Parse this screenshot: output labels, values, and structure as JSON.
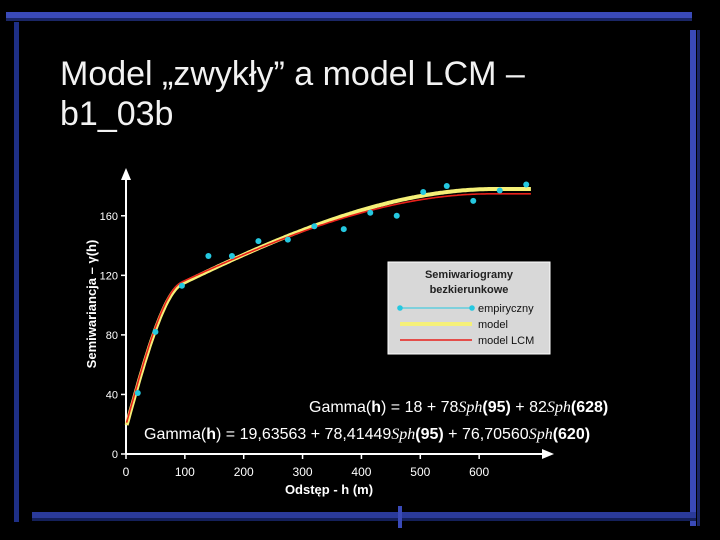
{
  "slide": {
    "title_line1": "Model „zwykły” a model LCM –",
    "title_line2": "b1_03b"
  },
  "colors": {
    "background": "#000000",
    "frame_blue": "#3a4ab8",
    "frame_dark": "#1e2f86",
    "axis": "#ffffff",
    "points": "#25c8e0",
    "model": "#f5f078",
    "model_lcm": "#e8201a"
  },
  "chart_data": {
    "type": "line",
    "ylabel": "Semiwariancja – γ(h)",
    "xlabel": "Odstęp - h (m)",
    "xlim": [
      0,
      700
    ],
    "ylim": [
      0,
      180
    ],
    "x_ticks": [
      "0",
      "100",
      "200",
      "300",
      "400",
      "500",
      "600"
    ],
    "y_ticks": [
      "0",
      "40",
      "80",
      "120",
      "160"
    ],
    "legend": {
      "title_line1": "Semiwariogramy",
      "title_line2": "bezkierunkowe",
      "items": [
        "empiryczny",
        "model",
        "model LCM"
      ],
      "placement": "center-right"
    },
    "series": [
      {
        "name": "empiryczny",
        "kind": "points",
        "x": [
          20,
          50,
          95,
          140,
          180,
          225,
          275,
          320,
          370,
          415,
          460,
          505,
          545,
          590,
          635,
          680
        ],
        "y": [
          41,
          82,
          113,
          133,
          133,
          143,
          144,
          153,
          151,
          162,
          160,
          176,
          180,
          170,
          177,
          181
        ]
      },
      {
        "name": "model",
        "kind": "line",
        "nugget": 18,
        "components": [
          {
            "model": "Sph",
            "sill": 78,
            "range": 95
          },
          {
            "model": "Sph",
            "sill": 82,
            "range": 628
          }
        ]
      },
      {
        "name": "model LCM",
        "kind": "line",
        "nugget": 19.63563,
        "components": [
          {
            "model": "Sph",
            "sill": 78.41449,
            "range": 95
          },
          {
            "model": "Sph",
            "sill": 76.7056,
            "range": 620
          }
        ]
      }
    ],
    "annotations": [
      {
        "pre": "Gamma(",
        "h": "h",
        "mid1": ") = 18 + 78",
        "sph1": "Sph",
        "r1": "(95)",
        "mid2": " + 82",
        "sph2": "Sph",
        "r2": "(628)"
      },
      {
        "pre": "Gamma(",
        "h": "h",
        "mid1": ") = 19,63563 + 78,41449",
        "sph1": "Sph",
        "r1": "(95)",
        "mid2": " + 76,70560",
        "sph2": "Sph",
        "r2": "(620)"
      }
    ]
  }
}
